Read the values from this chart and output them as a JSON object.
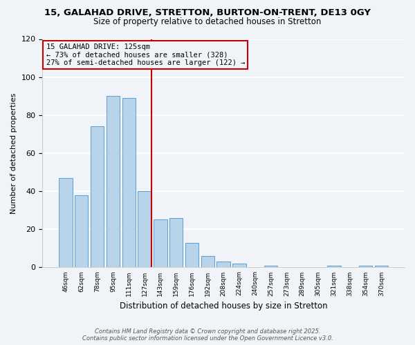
{
  "title": "15, GALAHAD DRIVE, STRETTON, BURTON-ON-TRENT, DE13 0GY",
  "subtitle": "Size of property relative to detached houses in Stretton",
  "xlabel": "Distribution of detached houses by size in Stretton",
  "ylabel": "Number of detached properties",
  "bar_labels": [
    "46sqm",
    "62sqm",
    "78sqm",
    "95sqm",
    "111sqm",
    "127sqm",
    "143sqm",
    "159sqm",
    "176sqm",
    "192sqm",
    "208sqm",
    "224sqm",
    "240sqm",
    "257sqm",
    "273sqm",
    "289sqm",
    "305sqm",
    "321sqm",
    "338sqm",
    "354sqm",
    "370sqm"
  ],
  "bar_values": [
    47,
    38,
    74,
    90,
    89,
    40,
    25,
    26,
    13,
    6,
    3,
    2,
    0,
    1,
    0,
    0,
    0,
    1,
    0,
    1,
    1
  ],
  "bar_color": "#b8d4ea",
  "bar_edge_color": "#5a9fd4",
  "ylim": [
    0,
    120
  ],
  "yticks": [
    0,
    20,
    40,
    60,
    80,
    100,
    120
  ],
  "vline_color": "#cc0000",
  "annotation_title": "15 GALAHAD DRIVE: 125sqm",
  "annotation_line1": "← 73% of detached houses are smaller (328)",
  "annotation_line2": "27% of semi-detached houses are larger (122) →",
  "annotation_box_color": "#cc0000",
  "footer_line1": "Contains HM Land Registry data © Crown copyright and database right 2025.",
  "footer_line2": "Contains public sector information licensed under the Open Government Licence v3.0.",
  "background_color": "#f0f4f8",
  "grid_color": "#ffffff"
}
